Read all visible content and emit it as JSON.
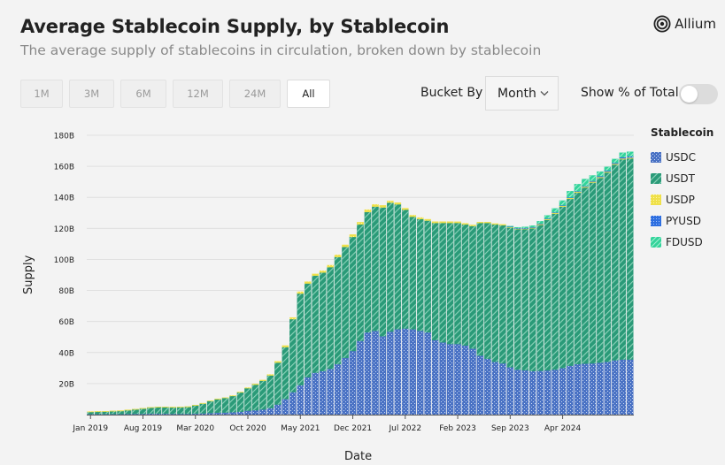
{
  "header": {
    "title": "Average Stablecoin Supply, by Stablecoin",
    "subtitle": "The average supply of stablecoins in circulation, broken down by stablecoin",
    "brand": "Allium"
  },
  "controls": {
    "ranges": [
      "1M",
      "3M",
      "6M",
      "12M",
      "24M",
      "All"
    ],
    "active_range": "All",
    "bucket_label": "Bucket By",
    "bucket_value": "Month",
    "percent_label": "Show % of Total",
    "percent_on": false
  },
  "colors": {
    "USDC": "#4a72c4",
    "USDT": "#2a9a78",
    "USDP": "#efe04a",
    "PYUSD": "#2e6fe0",
    "FDUSD": "#33d39a"
  },
  "chart_data": {
    "type": "bar",
    "stacked": true,
    "title": "",
    "xlabel": "Date",
    "ylabel": "Supply",
    "ylim": [
      0,
      180
    ],
    "yticks": [
      "",
      "20B",
      "40B",
      "60B",
      "80B",
      "100B",
      "120B",
      "140B",
      "160B",
      "180B"
    ],
    "xtick_labels": [
      {
        "index": 0,
        "label": "Jan 2019"
      },
      {
        "index": 7,
        "label": "Aug 2019"
      },
      {
        "index": 14,
        "label": "Mar 2020"
      },
      {
        "index": 21,
        "label": "Oct 2020"
      },
      {
        "index": 28,
        "label": "May 2021"
      },
      {
        "index": 35,
        "label": "Dec 2021"
      },
      {
        "index": 42,
        "label": "Jul 2022"
      },
      {
        "index": 49,
        "label": "Feb 2023"
      },
      {
        "index": 56,
        "label": "Sep 2023"
      },
      {
        "index": 63,
        "label": "Apr 2024"
      }
    ],
    "legend_title": "Stablecoin",
    "legend": [
      "USDC",
      "USDT",
      "USDP",
      "PYUSD",
      "FDUSD"
    ],
    "series": [
      {
        "name": "USDC",
        "values": [
          0.3,
          0.3,
          0.3,
          0.3,
          0.3,
          0.4,
          0.5,
          0.5,
          0.6,
          0.6,
          0.6,
          0.5,
          0.5,
          0.5,
          0.6,
          0.8,
          1.0,
          1.2,
          1.3,
          1.5,
          1.8,
          2.5,
          2.8,
          3.3,
          4.2,
          6.5,
          10.0,
          14.5,
          19.0,
          24.0,
          27.0,
          28.0,
          29.5,
          32.5,
          36.5,
          41.0,
          47.5,
          53.0,
          54.0,
          50.5,
          53.5,
          55.0,
          55.5,
          55.0,
          54.0,
          53.0,
          48.0,
          46.5,
          45.5,
          45.5,
          44.5,
          42.5,
          38.0,
          36.0,
          34.0,
          33.0,
          30.5,
          29.0,
          28.5,
          28.0,
          28.2,
          28.5,
          29.0,
          30.0,
          31.5,
          32.5,
          32.8,
          33.0,
          33.5,
          34.0,
          35.0,
          35.5,
          35.5
        ]
      },
      {
        "name": "USDT",
        "values": [
          1.6,
          1.7,
          1.8,
          2.0,
          2.2,
          2.6,
          3.0,
          3.5,
          4.0,
          4.3,
          4.3,
          4.3,
          4.4,
          4.6,
          5.5,
          6.5,
          7.8,
          8.8,
          9.5,
          10.5,
          12.5,
          14.5,
          16.5,
          18.5,
          21.0,
          27.0,
          33.5,
          47.0,
          59.0,
          60.5,
          62.5,
          63.5,
          65.5,
          69.0,
          71.5,
          73.5,
          75.0,
          77.5,
          80.0,
          83.0,
          83.0,
          80.5,
          76.5,
          72.5,
          72.0,
          72.0,
          75.5,
          77.0,
          78.0,
          78.0,
          78.0,
          79.0,
          85.5,
          87.5,
          88.5,
          89.0,
          90.0,
          90.5,
          91.0,
          92.0,
          94.0,
          97.0,
          100.5,
          104.0,
          107.5,
          110.5,
          113.5,
          116.5,
          119.0,
          122.0,
          126.0,
          129.0,
          129.5
        ]
      },
      {
        "name": "USDP",
        "values": [
          0.1,
          0.1,
          0.1,
          0.1,
          0.1,
          0.1,
          0.1,
          0.1,
          0.1,
          0.1,
          0.1,
          0.1,
          0.1,
          0.1,
          0.1,
          0.1,
          0.2,
          0.2,
          0.2,
          0.3,
          0.3,
          0.4,
          0.5,
          0.5,
          0.7,
          0.9,
          1.0,
          1.1,
          1.2,
          1.2,
          1.2,
          1.2,
          1.3,
          1.4,
          1.4,
          1.5,
          1.5,
          1.6,
          1.4,
          1.3,
          1.2,
          1.1,
          1.0,
          1.0,
          1.0,
          0.9,
          0.9,
          0.9,
          0.9,
          0.8,
          0.8,
          0.7,
          0.6,
          0.6,
          0.6,
          0.6,
          0.6,
          0.6,
          0.6,
          0.6,
          0.6,
          0.6,
          0.6,
          0.6,
          0.6,
          0.6,
          0.6,
          0.6,
          0.6,
          0.6,
          0.6,
          0.6,
          0.6
        ]
      },
      {
        "name": "PYUSD",
        "values": [
          0,
          0,
          0,
          0,
          0,
          0,
          0,
          0,
          0,
          0,
          0,
          0,
          0,
          0,
          0,
          0,
          0,
          0,
          0,
          0,
          0,
          0,
          0,
          0,
          0,
          0,
          0,
          0,
          0,
          0,
          0,
          0,
          0,
          0,
          0,
          0,
          0,
          0,
          0,
          0,
          0,
          0,
          0,
          0,
          0,
          0,
          0,
          0,
          0,
          0,
          0,
          0,
          0,
          0,
          0,
          0,
          0.1,
          0.1,
          0.1,
          0.2,
          0.3,
          0.3,
          0.3,
          0.3,
          0.4,
          0.4,
          0.4,
          0.5,
          0.5,
          0.6,
          0.6,
          0.7,
          0.8
        ]
      },
      {
        "name": "FDUSD",
        "values": [
          0,
          0,
          0,
          0,
          0,
          0,
          0,
          0,
          0,
          0,
          0,
          0,
          0,
          0,
          0,
          0,
          0,
          0,
          0,
          0,
          0,
          0,
          0,
          0,
          0,
          0,
          0,
          0,
          0,
          0,
          0,
          0,
          0,
          0,
          0,
          0,
          0,
          0,
          0,
          0,
          0,
          0,
          0,
          0,
          0,
          0,
          0,
          0,
          0,
          0,
          0,
          0,
          0,
          0,
          0,
          0,
          0.3,
          0.5,
          0.8,
          1.0,
          1.5,
          2.0,
          2.5,
          3.0,
          4.0,
          4.5,
          4.5,
          3.5,
          3.0,
          2.5,
          2.5,
          3.0,
          3.0
        ]
      }
    ]
  }
}
